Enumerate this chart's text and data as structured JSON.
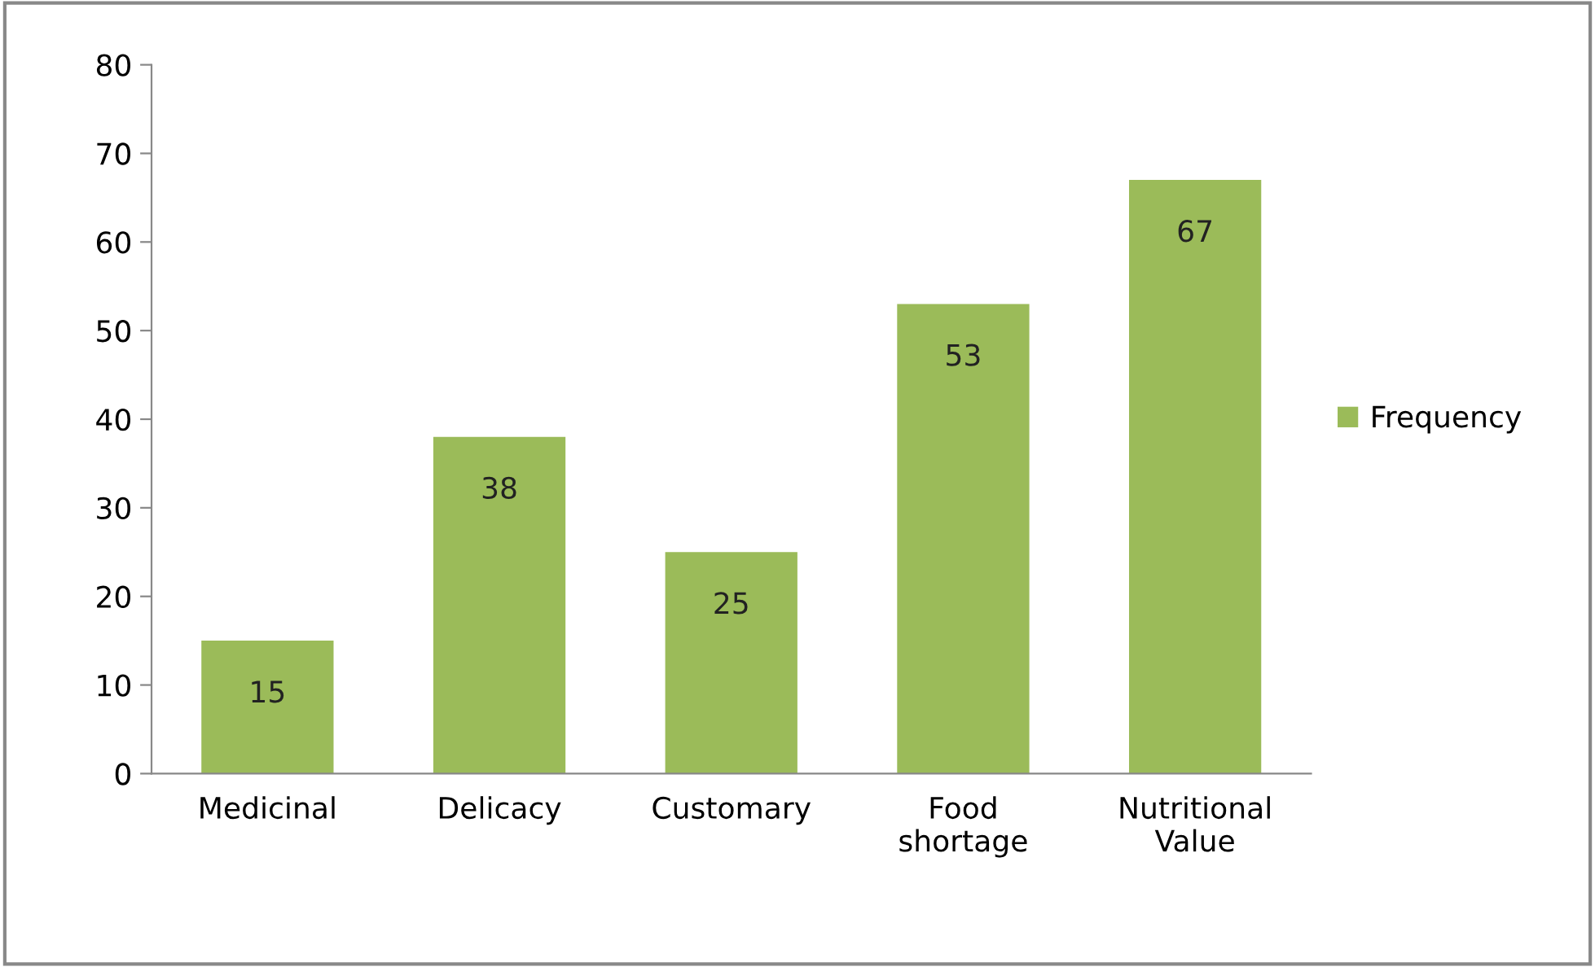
{
  "chart_data": {
    "type": "bar",
    "categories": [
      "Medicinal",
      "Delicacy",
      "Customary",
      "Food\nshortage",
      "Nutritional\nValue"
    ],
    "series": [
      {
        "name": "Frequency",
        "color": "#9bbb59",
        "values": [
          15,
          38,
          25,
          53,
          67
        ]
      }
    ],
    "ylim": [
      0,
      80
    ],
    "yticks": [
      0,
      10,
      20,
      30,
      40,
      50,
      60,
      70,
      80
    ],
    "data_labels": true,
    "legend": "right",
    "grid": false
  }
}
